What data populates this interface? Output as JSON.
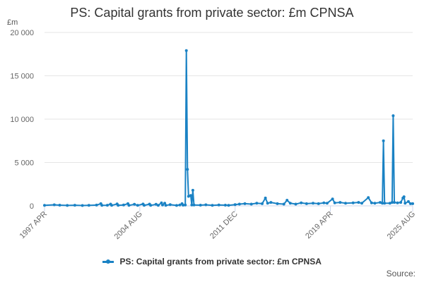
{
  "title": "PS: Capital grants from private sector: £m CPNSA",
  "unit_label": "£m",
  "source_label": "Source:",
  "colors": {
    "series": "#1a82c4"
  },
  "chart_data": {
    "type": "line",
    "title": "PS: Capital grants from private sector: £m CPNSA",
    "ylabel": "£m",
    "xlabel": "",
    "ylim": [
      0,
      20000
    ],
    "yticks": [
      0,
      5000,
      10000,
      15000,
      20000
    ],
    "ytick_labels": [
      "0",
      "5 000",
      "10 000",
      "15 000",
      "20 000"
    ],
    "xlim": [
      "1997-04",
      "2025-08"
    ],
    "xticks": [
      "1997-04",
      "2004-08",
      "2011-12",
      "2019-04",
      "2025-08"
    ],
    "xtick_labels": [
      "1997 APR",
      "2004 AUG",
      "2011 DEC",
      "2019 APR",
      "2025 AUG"
    ],
    "grid": true,
    "legend_position": "bottom",
    "series": [
      {
        "name": "PS: Capital grants from private sector: £m CPNSA",
        "points": [
          [
            "1997-04",
            60
          ],
          [
            "1998-01",
            120
          ],
          [
            "1998-06",
            80
          ],
          [
            "1999-01",
            50
          ],
          [
            "1999-08",
            70
          ],
          [
            "2000-03",
            40
          ],
          [
            "2000-09",
            60
          ],
          [
            "2001-04",
            90
          ],
          [
            "2001-08",
            250
          ],
          [
            "2001-09",
            60
          ],
          [
            "2002-02",
            70
          ],
          [
            "2002-05",
            200
          ],
          [
            "2002-06",
            60
          ],
          [
            "2002-11",
            220
          ],
          [
            "2002-12",
            60
          ],
          [
            "2003-05",
            100
          ],
          [
            "2003-09",
            250
          ],
          [
            "2003-10",
            60
          ],
          [
            "2004-03",
            180
          ],
          [
            "2004-06",
            60
          ],
          [
            "2004-11",
            210
          ],
          [
            "2004-12",
            60
          ],
          [
            "2005-05",
            200
          ],
          [
            "2005-06",
            60
          ],
          [
            "2005-11",
            180
          ],
          [
            "2006-01",
            60
          ],
          [
            "2006-04",
            350
          ],
          [
            "2006-05",
            100
          ],
          [
            "2006-07",
            300
          ],
          [
            "2006-08",
            60
          ],
          [
            "2006-12",
            150
          ],
          [
            "2007-06",
            50
          ],
          [
            "2007-09",
            100
          ],
          [
            "2007-11",
            250
          ],
          [
            "2007-12",
            80
          ],
          [
            "2008-02",
            100
          ],
          [
            "2008-03",
            17900
          ],
          [
            "2008-04",
            4200
          ],
          [
            "2008-05",
            1100
          ],
          [
            "2008-07",
            1200
          ],
          [
            "2008-08",
            100
          ],
          [
            "2008-09",
            1800
          ],
          [
            "2008-10",
            100
          ],
          [
            "2009-04",
            80
          ],
          [
            "2009-09",
            120
          ],
          [
            "2010-03",
            60
          ],
          [
            "2010-09",
            100
          ],
          [
            "2011-03",
            80
          ],
          [
            "2011-06",
            60
          ],
          [
            "2011-12",
            150
          ],
          [
            "2012-04",
            200
          ],
          [
            "2012-09",
            250
          ],
          [
            "2013-03",
            200
          ],
          [
            "2013-08",
            300
          ],
          [
            "2014-01",
            250
          ],
          [
            "2014-04",
            900
          ],
          [
            "2014-06",
            300
          ],
          [
            "2014-09",
            400
          ],
          [
            "2015-03",
            250
          ],
          [
            "2015-09",
            200
          ],
          [
            "2015-12",
            650
          ],
          [
            "2016-03",
            300
          ],
          [
            "2016-08",
            200
          ],
          [
            "2017-01",
            350
          ],
          [
            "2017-06",
            250
          ],
          [
            "2017-12",
            300
          ],
          [
            "2018-05",
            250
          ],
          [
            "2018-10",
            350
          ],
          [
            "2019-01",
            300
          ],
          [
            "2019-06",
            800
          ],
          [
            "2019-08",
            350
          ],
          [
            "2020-01",
            400
          ],
          [
            "2020-06",
            300
          ],
          [
            "2021-01",
            350
          ],
          [
            "2021-06",
            400
          ],
          [
            "2021-09",
            300
          ],
          [
            "2022-03",
            950
          ],
          [
            "2022-06",
            350
          ],
          [
            "2022-09",
            300
          ],
          [
            "2023-02",
            400
          ],
          [
            "2023-04",
            300
          ],
          [
            "2023-05",
            7500
          ],
          [
            "2023-06",
            300
          ],
          [
            "2023-11",
            300
          ],
          [
            "2024-01",
            400
          ],
          [
            "2024-02",
            10400
          ],
          [
            "2024-03",
            400
          ],
          [
            "2024-06",
            350
          ],
          [
            "2024-09",
            400
          ],
          [
            "2024-11",
            900
          ],
          [
            "2024-12",
            1050
          ],
          [
            "2025-01",
            300
          ],
          [
            "2025-04",
            500
          ],
          [
            "2025-06",
            250
          ],
          [
            "2025-08",
            250
          ]
        ]
      }
    ]
  }
}
